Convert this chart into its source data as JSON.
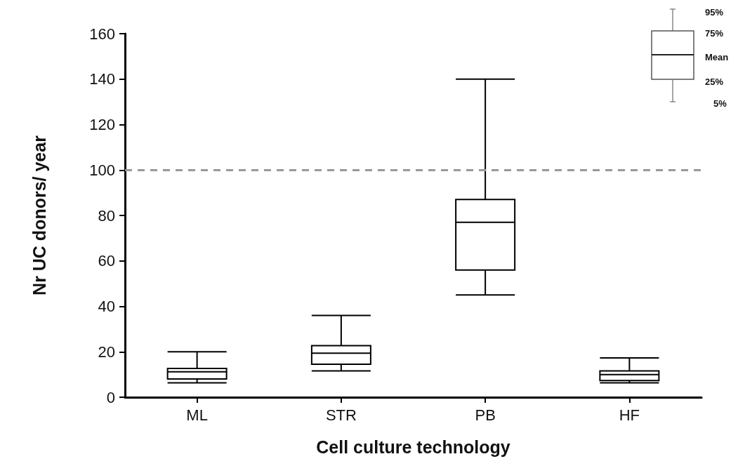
{
  "chart_data": {
    "type": "box",
    "xlabel": "Cell culture technology",
    "ylabel": "Nr UC donors/ year",
    "categories": [
      "ML",
      "STR",
      "PB",
      "HF"
    ],
    "boxes": [
      {
        "low": 6.3,
        "q1": 8,
        "median": 11.2,
        "q3": 12.7,
        "high": 20
      },
      {
        "low": 11.6,
        "q1": 14.5,
        "median": 19.4,
        "q3": 22.7,
        "high": 36
      },
      {
        "low": 45,
        "q1": 56,
        "median": 77,
        "q3": 87,
        "high": 140
      },
      {
        "low": 6.3,
        "q1": 7.3,
        "median": 10,
        "q3": 11.6,
        "high": 17.3
      }
    ],
    "color": "#000000",
    "ylim": [
      0,
      160
    ],
    "yticks": [
      0,
      20,
      40,
      60,
      80,
      100,
      120,
      140,
      160
    ],
    "ref_lines": [
      {
        "axis": "y",
        "value": 100,
        "color": "#999999",
        "line_style": "dashed"
      }
    ],
    "annotations": [
      "95%",
      "75%",
      "Mean",
      "25%",
      "5%"
    ],
    "grid": false
  }
}
